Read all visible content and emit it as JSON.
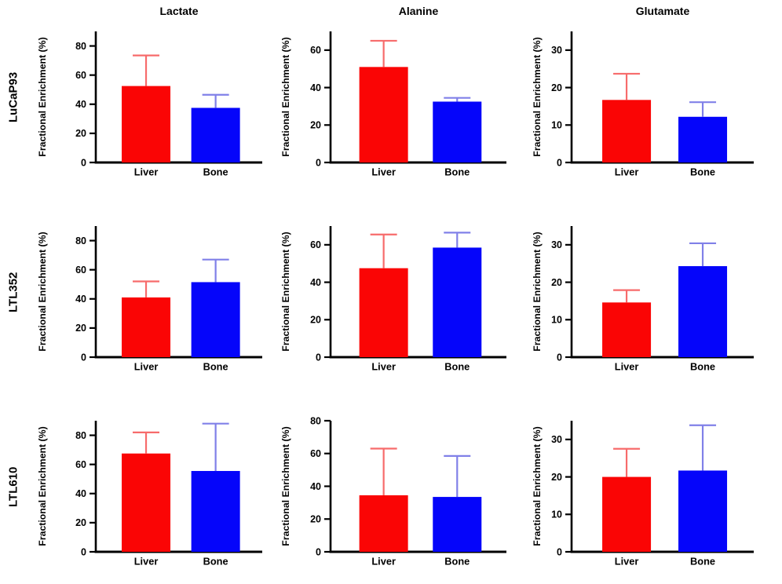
{
  "figure": {
    "columns": [
      {
        "label": "Lactate"
      },
      {
        "label": "Alanine"
      },
      {
        "label": "Glutamate"
      }
    ],
    "rows": [
      {
        "label": "LuCaP93"
      },
      {
        "label": "LTL352"
      },
      {
        "label": "LTL610"
      }
    ],
    "ylabel": "Fractional Enrichment (%)",
    "colors": {
      "liver": "#fa0505",
      "bone": "#0505fa",
      "liver_err": "#f76b6b",
      "bone_err": "#8080e8",
      "axis": "#000000"
    }
  },
  "chart_data": [
    {
      "type": "bar",
      "row": "LuCaP93",
      "column": "Lactate",
      "title": "Lactate",
      "ylabel": "Fractional Enrichment (%)",
      "categories": [
        "Liver",
        "Bone"
      ],
      "values": [
        52.5,
        37.5
      ],
      "error_tops": [
        73.5,
        46.5
      ],
      "ylim": [
        0,
        90
      ],
      "yticks": [
        0,
        20,
        40,
        60,
        80
      ]
    },
    {
      "type": "bar",
      "row": "LuCaP93",
      "column": "Alanine",
      "title": "Alanine",
      "ylabel": "Fractional Enrichment (%)",
      "categories": [
        "Liver",
        "Bone"
      ],
      "values": [
        51,
        32.5
      ],
      "error_tops": [
        65,
        34.5
      ],
      "ylim": [
        0,
        70
      ],
      "yticks": [
        0,
        20,
        40,
        60
      ]
    },
    {
      "type": "bar",
      "row": "LuCaP93",
      "column": "Glutamate",
      "title": "Glutamate",
      "ylabel": "Fractional Enrichment (%)",
      "categories": [
        "Liver",
        "Bone"
      ],
      "values": [
        16.7,
        12.2
      ],
      "error_tops": [
        23.7,
        16.1
      ],
      "ylim": [
        0,
        35
      ],
      "yticks": [
        0,
        10,
        20,
        30
      ]
    },
    {
      "type": "bar",
      "row": "LTL352",
      "column": "Lactate",
      "title": "",
      "ylabel": "Fractional Enrichment (%)",
      "categories": [
        "Liver",
        "Bone"
      ],
      "values": [
        41,
        51.5
      ],
      "error_tops": [
        52,
        67
      ],
      "ylim": [
        0,
        90
      ],
      "yticks": [
        0,
        20,
        40,
        60,
        80
      ]
    },
    {
      "type": "bar",
      "row": "LTL352",
      "column": "Alanine",
      "title": "",
      "ylabel": "Fractional Enrichment (%)",
      "categories": [
        "Liver",
        "Bone"
      ],
      "values": [
        47.5,
        58.5
      ],
      "error_tops": [
        65.5,
        66.5
      ],
      "ylim": [
        0,
        70
      ],
      "yticks": [
        0,
        20,
        40,
        60
      ]
    },
    {
      "type": "bar",
      "row": "LTL352",
      "column": "Glutamate",
      "title": "",
      "ylabel": "Fractional Enrichment (%)",
      "categories": [
        "Liver",
        "Bone"
      ],
      "values": [
        14.6,
        24.3
      ],
      "error_tops": [
        17.9,
        30.4
      ],
      "ylim": [
        0,
        35
      ],
      "yticks": [
        0,
        10,
        20,
        30
      ]
    },
    {
      "type": "bar",
      "row": "LTL610",
      "column": "Lactate",
      "title": "",
      "ylabel": "Fractional Enrichment (%)",
      "categories": [
        "Liver",
        "Bone"
      ],
      "values": [
        67.5,
        55.5
      ],
      "error_tops": [
        82,
        88
      ],
      "ylim": [
        0,
        90
      ],
      "yticks": [
        0,
        20,
        40,
        60,
        80
      ]
    },
    {
      "type": "bar",
      "row": "LTL610",
      "column": "Alanine",
      "title": "",
      "ylabel": "Fractional Enrichment (%)",
      "categories": [
        "Liver",
        "Bone"
      ],
      "values": [
        34.5,
        33.5
      ],
      "error_tops": [
        63,
        58.5
      ],
      "ylim": [
        0,
        80
      ],
      "yticks": [
        0,
        20,
        40,
        60,
        80
      ]
    },
    {
      "type": "bar",
      "row": "LTL610",
      "column": "Glutamate",
      "title": "",
      "ylabel": "Fractional Enrichment (%)",
      "categories": [
        "Liver",
        "Bone"
      ],
      "values": [
        20,
        21.7
      ],
      "error_tops": [
        27.5,
        33.8
      ],
      "ylim": [
        0,
        35
      ],
      "yticks": [
        0,
        10,
        20,
        30
      ]
    }
  ]
}
